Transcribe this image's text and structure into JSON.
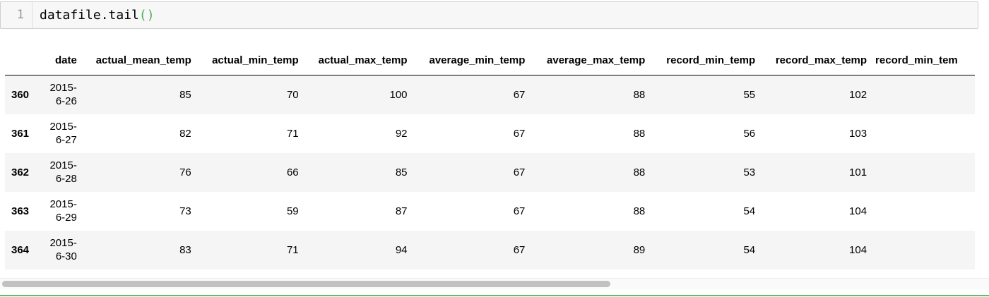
{
  "input_cell": {
    "line_number": "1",
    "code_object": "datafile.tail",
    "code_paren_open": "(",
    "code_paren_close": ")"
  },
  "table": {
    "columns": [
      "date",
      "actual_mean_temp",
      "actual_min_temp",
      "actual_max_temp",
      "average_min_temp",
      "average_max_temp",
      "record_min_temp",
      "record_max_temp",
      "record_min_tem"
    ],
    "rows": [
      {
        "index": "360",
        "date_line1": "2015-",
        "date_line2": "6-26",
        "values": [
          "85",
          "70",
          "100",
          "67",
          "88",
          "55",
          "102"
        ]
      },
      {
        "index": "361",
        "date_line1": "2015-",
        "date_line2": "6-27",
        "values": [
          "82",
          "71",
          "92",
          "67",
          "88",
          "56",
          "103"
        ]
      },
      {
        "index": "362",
        "date_line1": "2015-",
        "date_line2": "6-28",
        "values": [
          "76",
          "66",
          "85",
          "67",
          "88",
          "53",
          "101"
        ]
      },
      {
        "index": "363",
        "date_line1": "2015-",
        "date_line2": "6-29",
        "values": [
          "73",
          "59",
          "87",
          "67",
          "88",
          "54",
          "104"
        ]
      },
      {
        "index": "364",
        "date_line1": "2015-",
        "date_line2": "6-30",
        "values": [
          "83",
          "71",
          "94",
          "67",
          "89",
          "54",
          "104"
        ]
      }
    ]
  },
  "scrollbar": {
    "thumb_fraction": 0.62
  },
  "colors": {
    "paren": "#4caf50",
    "row_stripe": "#f5f5f5",
    "cell_border_green": "#66bb6a"
  }
}
